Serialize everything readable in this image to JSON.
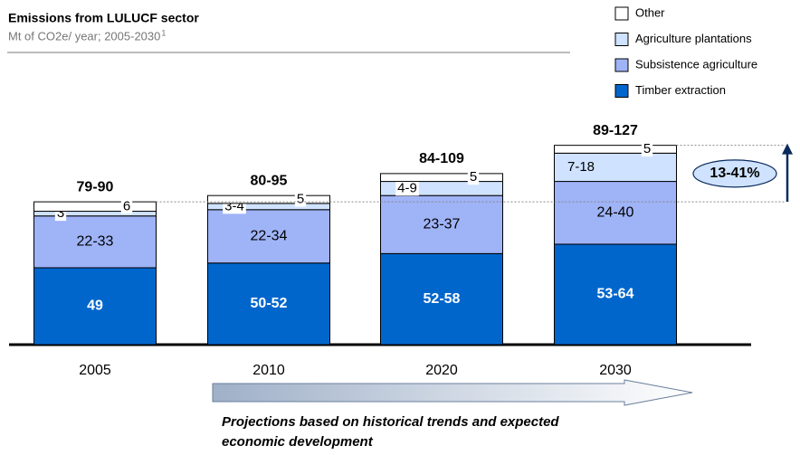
{
  "chart_data": {
    "type": "stacked_bar",
    "title": "Emissions from LULUCF sector",
    "subtitle": "Mt of CO2e/ year; 2005-2030",
    "subtitle_note": "1",
    "categories": [
      "2005",
      "2010",
      "2020",
      "2030"
    ],
    "total_labels": [
      "79-90",
      "80-95",
      "84-109",
      "89-127"
    ],
    "series": [
      {
        "name": "Timber extraction",
        "color": "#0066cc",
        "values": [
          49,
          52,
          58,
          64
        ],
        "value_labels": [
          "49",
          "50-52",
          "52-58",
          "53-64"
        ]
      },
      {
        "name": "Subsistence agriculture",
        "color": "#9fb3f7",
        "values": [
          33,
          34,
          37,
          40
        ],
        "value_labels": [
          "22-33",
          "22-34",
          "23-37",
          "24-40"
        ]
      },
      {
        "name": "Agriculture plantations",
        "color": "#cfe2ff",
        "values": [
          3,
          4,
          9,
          18
        ],
        "value_labels": [
          "3",
          "3-4",
          "4-9",
          "7-18"
        ]
      },
      {
        "name": "Other",
        "color": "#ffffff",
        "values": [
          6,
          5,
          5,
          5
        ],
        "value_labels": [
          "6",
          "5",
          "5",
          "5"
        ]
      }
    ],
    "annotation": "13-41%",
    "note": [
      "Projections based on historical trends and expected",
      "economic development"
    ]
  }
}
